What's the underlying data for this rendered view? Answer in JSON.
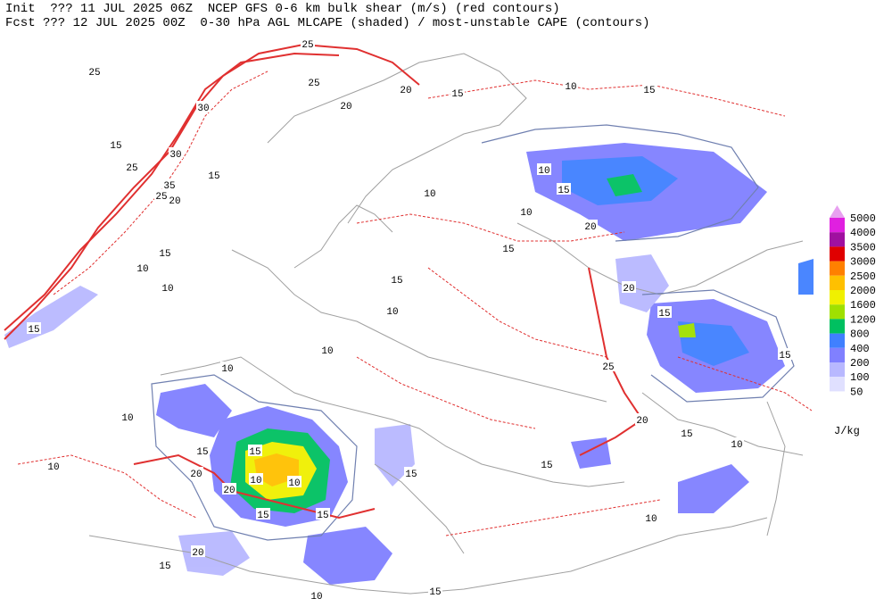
{
  "header": {
    "line1": "Init  ??? 11 JUL 2025 06Z  NCEP GFS 0-6 km bulk shear (m/s) (red contours)",
    "line2": "Fcst ??? 12 JUL 2025 00Z  0-30 hPa AGL MLCAPE (shaded) / most-unstable CAPE (contours)"
  },
  "colorbar": {
    "unit": "J/kg",
    "levels": [
      {
        "value": 5000,
        "color": "#e8a0f0"
      },
      {
        "value": 4000,
        "color": "#e020e0"
      },
      {
        "value": 3500,
        "color": "#a010a0"
      },
      {
        "value": 3000,
        "color": "#e00000"
      },
      {
        "value": 2500,
        "color": "#ff8000"
      },
      {
        "value": 2000,
        "color": "#ffc000"
      },
      {
        "value": 1600,
        "color": "#f0f000"
      },
      {
        "value": 1200,
        "color": "#a0e000"
      },
      {
        "value": 800,
        "color": "#00c060"
      },
      {
        "value": 400,
        "color": "#4080ff"
      },
      {
        "value": 200,
        "color": "#8080ff"
      },
      {
        "value": 100,
        "color": "#b8b8ff"
      },
      {
        "value": 50,
        "color": "#e0e0ff"
      }
    ]
  },
  "contour_labels": [
    25,
    25,
    25,
    20,
    15,
    10,
    15,
    30,
    20,
    15,
    30,
    25,
    15,
    35,
    25,
    20,
    10,
    10,
    15,
    10,
    15,
    20,
    15,
    10,
    10,
    15,
    15,
    20,
    15,
    10,
    10,
    20,
    15,
    25,
    15,
    10,
    15,
    15,
    20,
    20,
    10,
    10,
    15,
    15,
    10,
    15,
    10,
    10,
    15,
    15,
    20,
    15,
    10,
    10
  ]
}
